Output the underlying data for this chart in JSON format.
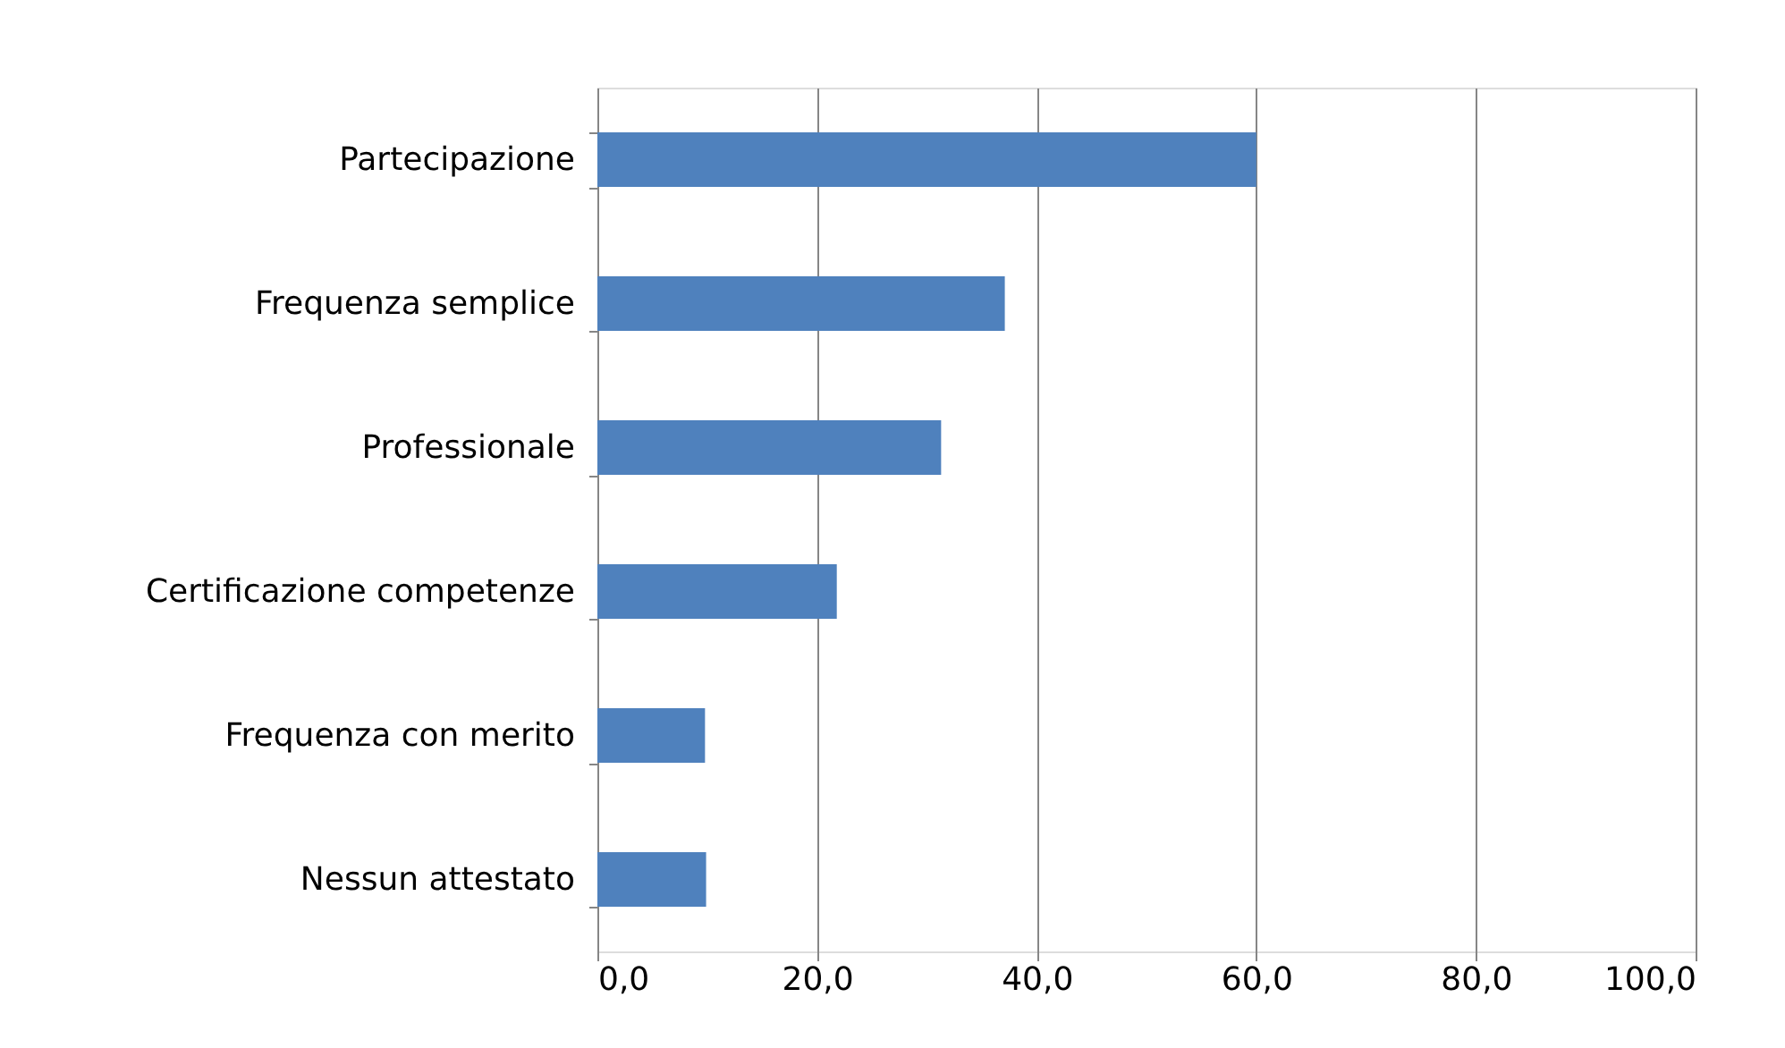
{
  "chart_data": {
    "type": "bar",
    "orientation": "horizontal",
    "categories": [
      "Partecipazione",
      "Frequenza semplice",
      "Professionale",
      "Certificazione competenze",
      "Frequenza con merito",
      "Nessun attestato"
    ],
    "values": [
      60.0,
      37.1,
      31.3,
      21.8,
      9.8,
      9.9
    ],
    "color": "#4f81bd",
    "xlim": [
      0,
      100
    ],
    "xticks": [
      {
        "value": 0,
        "label": "0,0"
      },
      {
        "value": 20,
        "label": "20,0"
      },
      {
        "value": 40,
        "label": "40,0"
      },
      {
        "value": 60,
        "label": "60,0"
      },
      {
        "value": 80,
        "label": "80,0"
      },
      {
        "value": 100,
        "label": "100,0"
      }
    ],
    "grid": "x"
  }
}
